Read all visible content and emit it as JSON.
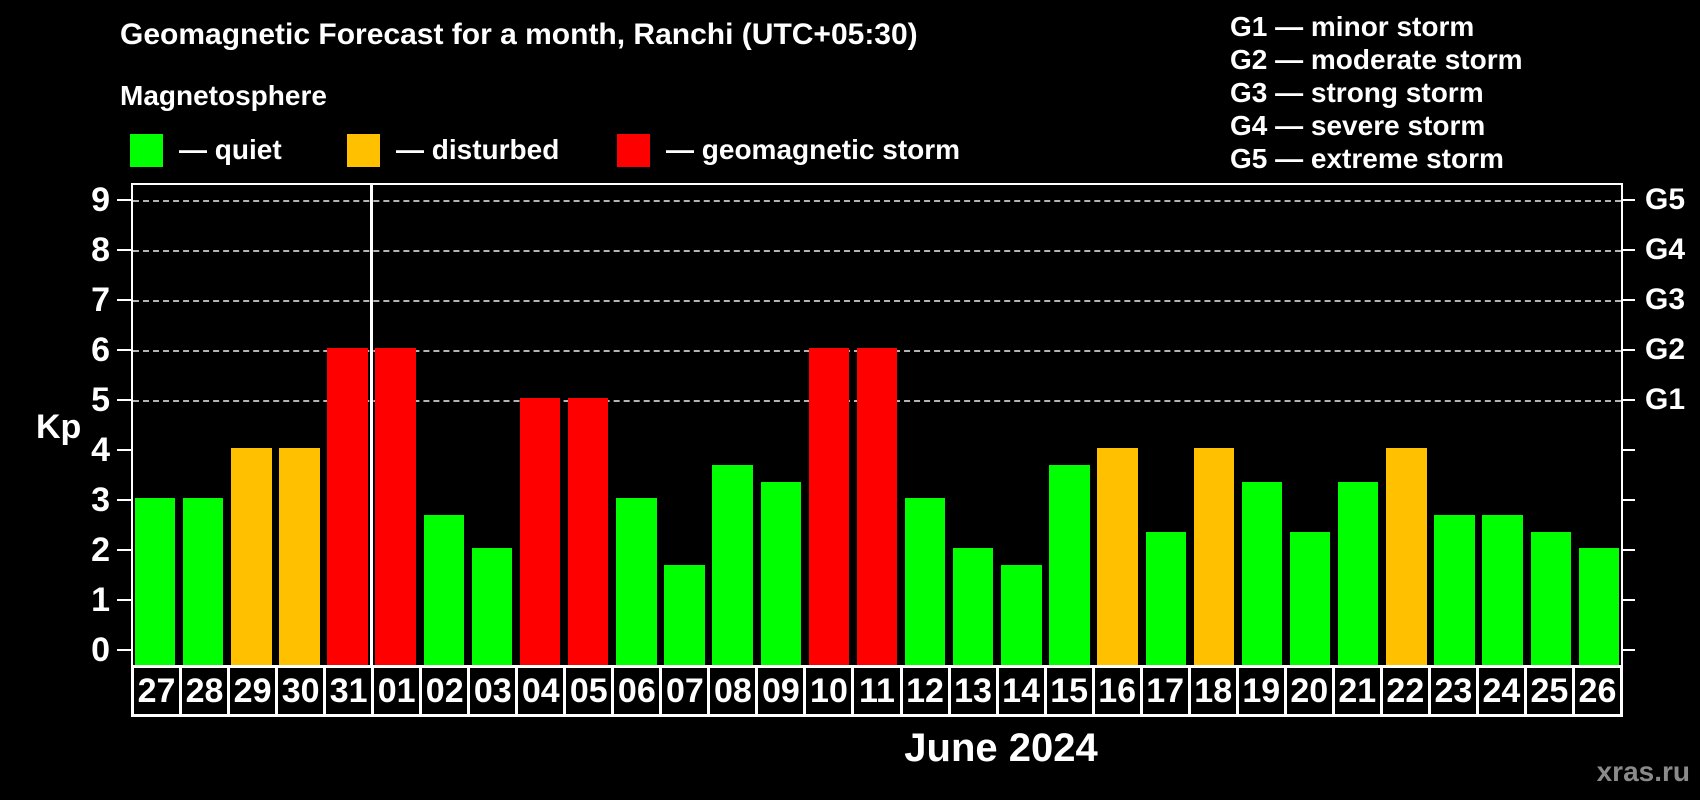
{
  "header": {
    "title": "Geomagnetic Forecast for a month, Ranchi (UTC+05:30)",
    "subtitle": "Magnetosphere"
  },
  "legend": {
    "items": [
      {
        "label": "— quiet",
        "status": "quiet"
      },
      {
        "label": "— disturbed",
        "status": "disturbed"
      },
      {
        "label": "— geomagnetic storm",
        "status": "storm"
      }
    ]
  },
  "g_legend": {
    "items": [
      "G1 — minor storm",
      "G2 — moderate storm",
      "G3 — strong storm",
      "G4 — severe storm",
      "G5 — extreme storm"
    ]
  },
  "watermark": "xras.ru",
  "chart_data": {
    "type": "bar",
    "title": "Geomagnetic Forecast for a month, Ranchi (UTC+05:30)",
    "ylabel": "Kp",
    "xlabel": "June 2024",
    "ylim": [
      0,
      9
    ],
    "yticks": [
      0,
      1,
      2,
      3,
      4,
      5,
      6,
      7,
      8,
      9
    ],
    "grid_levels": [
      5,
      6,
      7,
      8,
      9
    ],
    "right_axis": [
      {
        "kp": 5,
        "label": "G1"
      },
      {
        "kp": 6,
        "label": "G2"
      },
      {
        "kp": 7,
        "label": "G3"
      },
      {
        "kp": 8,
        "label": "G4"
      },
      {
        "kp": 9,
        "label": "G5"
      }
    ],
    "month_boundary_index": 5,
    "status_colors": {
      "quiet": "#00ff00",
      "disturbed": "#ffc000",
      "storm": "#ff0000"
    },
    "bars": [
      {
        "day": "27",
        "kp": 3.0,
        "status": "quiet"
      },
      {
        "day": "28",
        "kp": 3.0,
        "status": "quiet"
      },
      {
        "day": "29",
        "kp": 4.0,
        "status": "disturbed"
      },
      {
        "day": "30",
        "kp": 4.0,
        "status": "disturbed"
      },
      {
        "day": "31",
        "kp": 6.0,
        "status": "storm"
      },
      {
        "day": "01",
        "kp": 6.0,
        "status": "storm"
      },
      {
        "day": "02",
        "kp": 2.67,
        "status": "quiet"
      },
      {
        "day": "03",
        "kp": 2.0,
        "status": "quiet"
      },
      {
        "day": "04",
        "kp": 5.0,
        "status": "storm"
      },
      {
        "day": "05",
        "kp": 5.0,
        "status": "storm"
      },
      {
        "day": "06",
        "kp": 3.0,
        "status": "quiet"
      },
      {
        "day": "07",
        "kp": 1.67,
        "status": "quiet"
      },
      {
        "day": "08",
        "kp": 3.67,
        "status": "quiet"
      },
      {
        "day": "09",
        "kp": 3.33,
        "status": "quiet"
      },
      {
        "day": "10",
        "kp": 6.0,
        "status": "storm"
      },
      {
        "day": "11",
        "kp": 6.0,
        "status": "storm"
      },
      {
        "day": "12",
        "kp": 3.0,
        "status": "quiet"
      },
      {
        "day": "13",
        "kp": 2.0,
        "status": "quiet"
      },
      {
        "day": "14",
        "kp": 1.67,
        "status": "quiet"
      },
      {
        "day": "15",
        "kp": 3.67,
        "status": "quiet"
      },
      {
        "day": "16",
        "kp": 4.0,
        "status": "disturbed"
      },
      {
        "day": "17",
        "kp": 2.33,
        "status": "quiet"
      },
      {
        "day": "18",
        "kp": 4.0,
        "status": "disturbed"
      },
      {
        "day": "19",
        "kp": 3.33,
        "status": "quiet"
      },
      {
        "day": "20",
        "kp": 2.33,
        "status": "quiet"
      },
      {
        "day": "21",
        "kp": 3.33,
        "status": "quiet"
      },
      {
        "day": "22",
        "kp": 4.0,
        "status": "disturbed"
      },
      {
        "day": "23",
        "kp": 2.67,
        "status": "quiet"
      },
      {
        "day": "24",
        "kp": 2.67,
        "status": "quiet"
      },
      {
        "day": "25",
        "kp": 2.33,
        "status": "quiet"
      },
      {
        "day": "26",
        "kp": 2.0,
        "status": "quiet"
      }
    ]
  }
}
